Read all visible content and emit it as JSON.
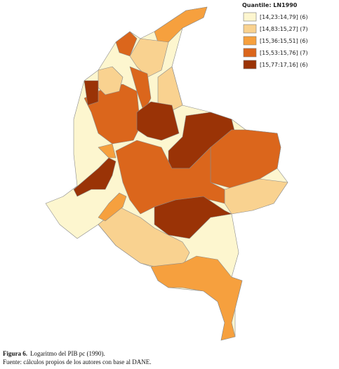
{
  "legend": {
    "title": "Quantile: LN1990",
    "items": [
      {
        "label": "[14,23:14,79] (6)",
        "color": "#fdf6cf"
      },
      {
        "label": "[14,83:15,27] (7)",
        "color": "#f9d290"
      },
      {
        "label": "[15,36:15,51] (6)",
        "color": "#f6a03e"
      },
      {
        "label": "[15,53:15,76] (7)",
        "color": "#db661c"
      },
      {
        "label": "[15,77:17,16] (6)",
        "color": "#9a3306"
      }
    ]
  },
  "caption": {
    "label": "Figura 6.",
    "text": "Logaritmo del PIB pc (1990).",
    "source": "Fuente: cálculos propios de los autores con base al DANE."
  }
}
